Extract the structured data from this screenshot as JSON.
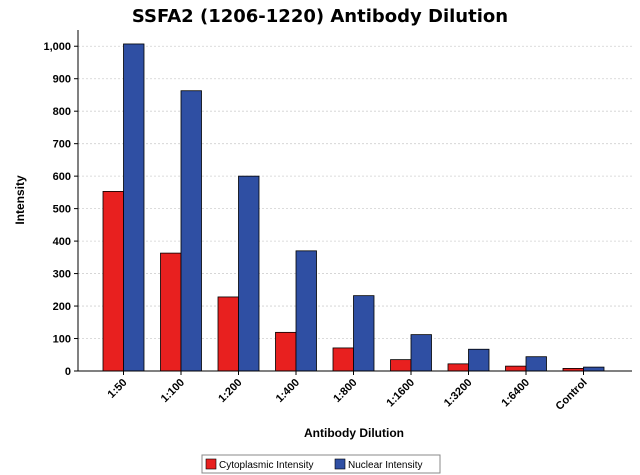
{
  "chart_data": {
    "type": "bar",
    "title": "SSFA2 (1206-1220) Antibody Dilution",
    "xlabel": "Antibody Dilution",
    "ylabel": "Intensity",
    "categories": [
      "1:50",
      "1:100",
      "1:200",
      "1:400",
      "1:800",
      "1:1600",
      "1:3200",
      "1:6400",
      "Control"
    ],
    "series": [
      {
        "name": "Cytoplasmic Intensity",
        "color": "#e8201f",
        "values": [
          553,
          363,
          228,
          119,
          71,
          35,
          22,
          15,
          8
        ]
      },
      {
        "name": "Nuclear Intensity",
        "color": "#2f4fa3",
        "values": [
          1007,
          863,
          600,
          370,
          232,
          112,
          67,
          44,
          12
        ]
      }
    ],
    "ylim": [
      0,
      1050
    ],
    "yticks": [
      0,
      100,
      200,
      300,
      400,
      500,
      600,
      700,
      800,
      900,
      1000
    ],
    "ytick_labels": [
      "0",
      "100",
      "200",
      "300",
      "400",
      "500",
      "600",
      "700",
      "800",
      "900",
      "1,000"
    ],
    "grid": true,
    "legend_position": "bottom-center"
  }
}
